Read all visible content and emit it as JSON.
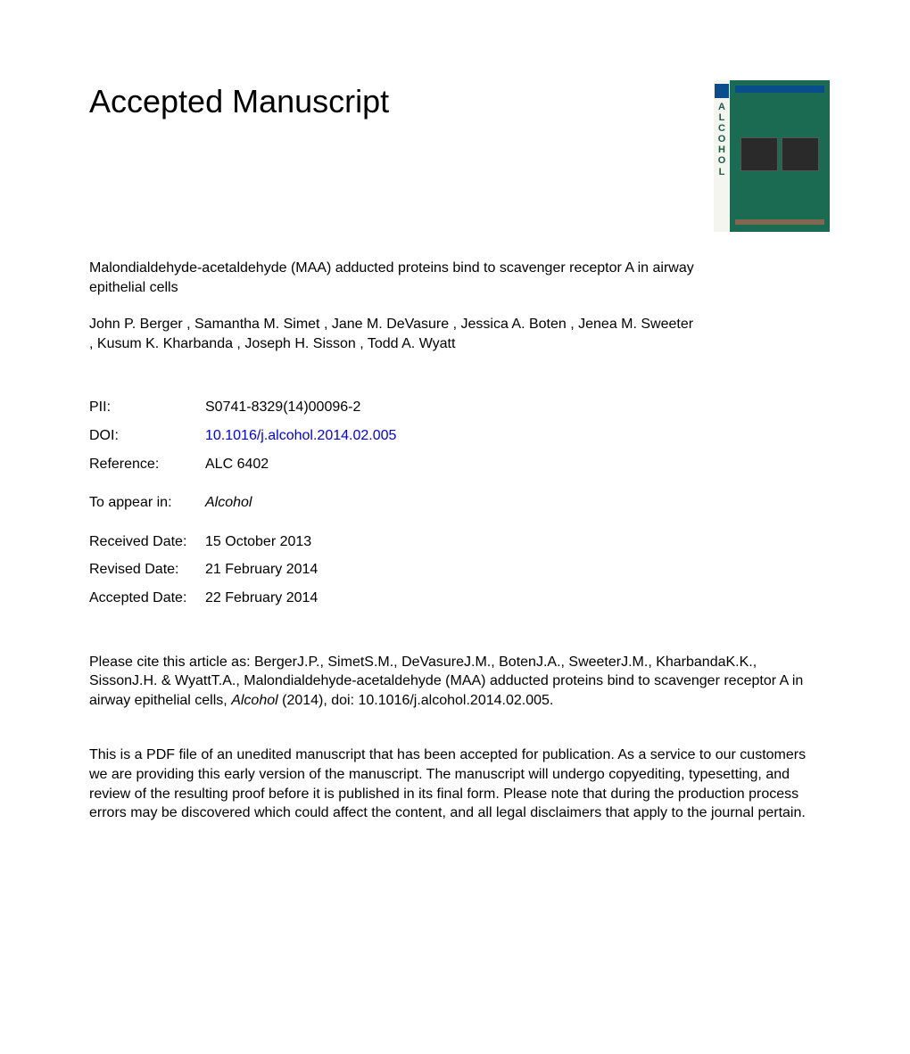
{
  "heading": "Accepted Manuscript",
  "journal_cover": {
    "spine_letters": [
      "A",
      "L",
      "C",
      "O",
      "H",
      "O",
      "L"
    ],
    "background_color": "#1a6b52",
    "spine_color": "#f5f5f0",
    "spine_text_color": "#1a5c4a"
  },
  "article": {
    "title": "Malondialdehyde-acetaldehyde (MAA) adducted proteins bind to scavenger receptor A in airway epithelial cells",
    "authors": "John P. Berger , Samantha M. Simet , Jane M. DeVasure , Jessica A. Boten , Jenea M. Sweeter , Kusum K. Kharbanda , Joseph H. Sisson , Todd A. Wyatt"
  },
  "metadata": {
    "pii_label": "PII:",
    "pii_value": "S0741-8329(14)00096-2",
    "doi_label": "DOI:",
    "doi_value": "10.1016/j.alcohol.2014.02.005",
    "reference_label": "Reference:",
    "reference_value": "ALC 6402",
    "appear_label": "To appear in:",
    "appear_value": "Alcohol",
    "received_label": "Received Date:",
    "received_value": "15 October 2013",
    "revised_label": "Revised Date:",
    "revised_value": "21 February 2014",
    "accepted_label": "Accepted Date:",
    "accepted_value": "22 February 2014"
  },
  "citation": {
    "prefix": "Please cite this article as: BergerJ.P., SimetS.M., DeVasureJ.M., BotenJ.A., SweeterJ.M., KharbandaK.K., SissonJ.H. & WyattT.A., Malondialdehyde-acetaldehyde (MAA) adducted proteins bind to scavenger receptor A in airway epithelial cells, ",
    "journal": "Alcohol",
    "suffix": " (2014), doi: 10.1016/j.alcohol.2014.02.005."
  },
  "disclaimer": "This is a PDF file of an unedited manuscript that has been accepted for publication. As a service to our customers we are providing this early version of the manuscript. The manuscript will undergo copyediting, typesetting, and review of the resulting proof before it is published in its final form. Please note that during the production process errors may be discovered which could affect the content, and all legal disclaimers that apply to the journal pertain."
}
